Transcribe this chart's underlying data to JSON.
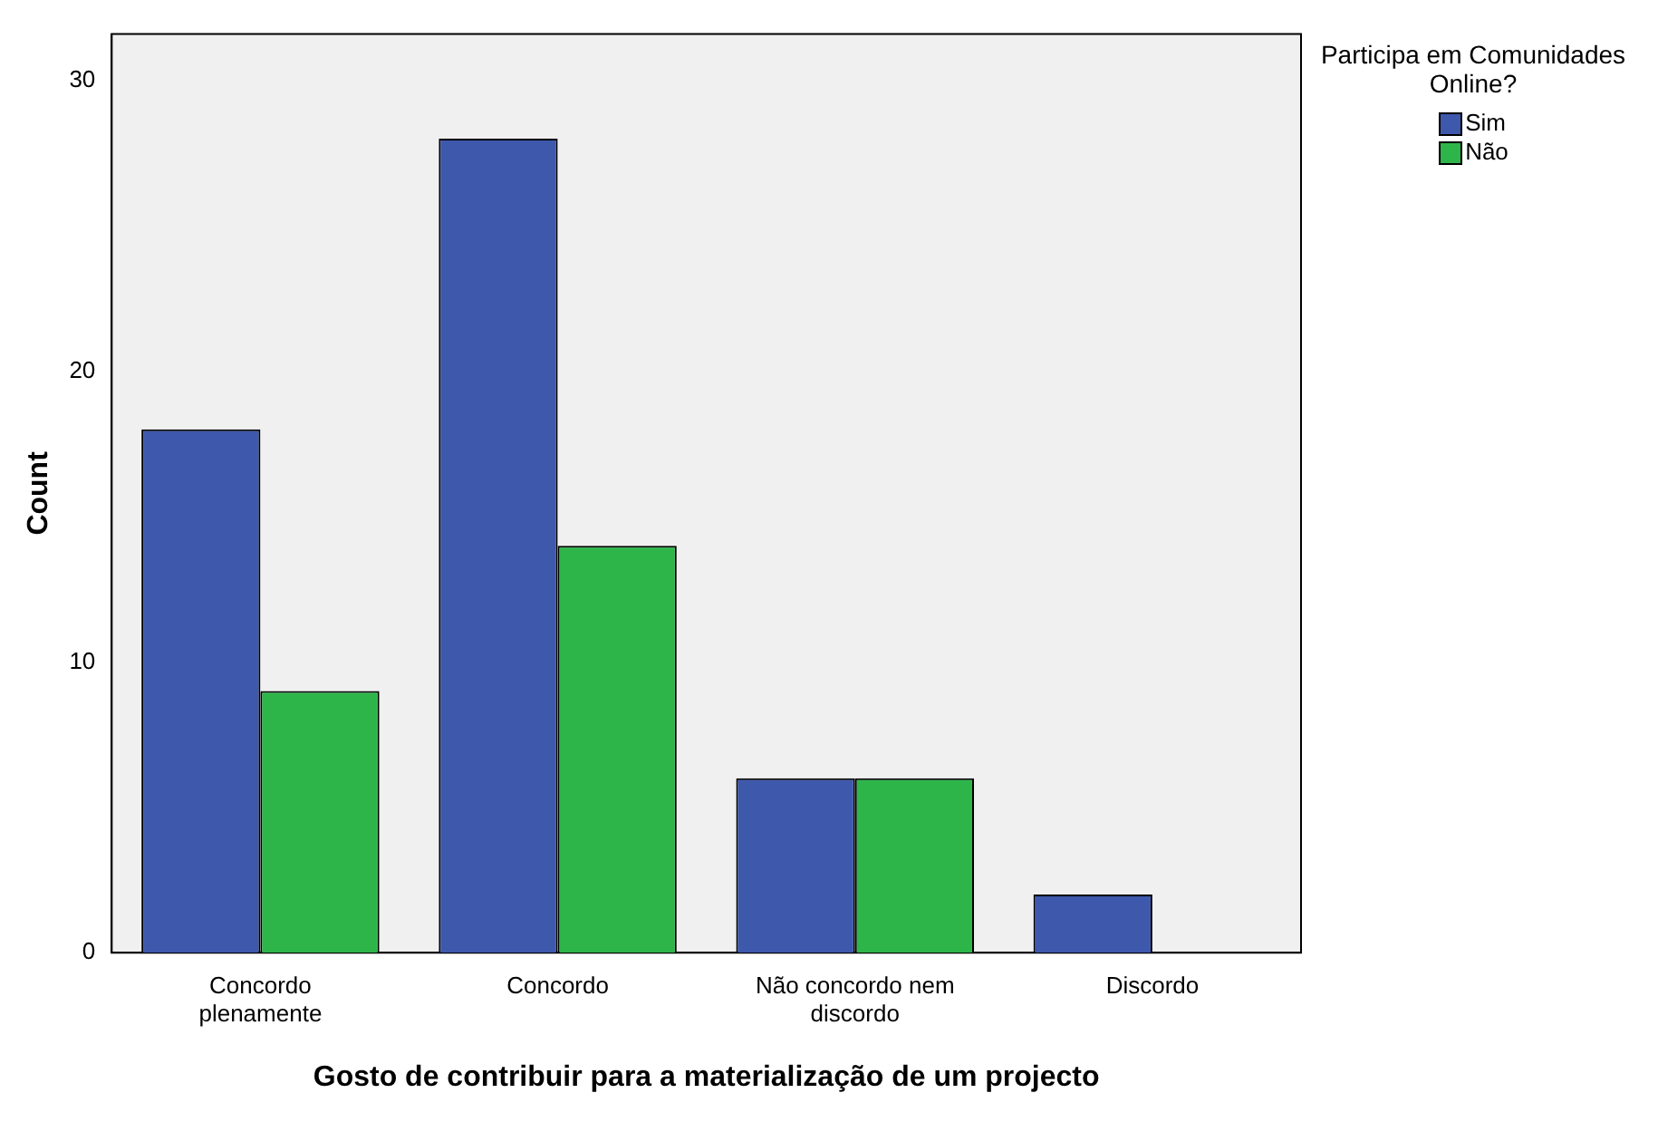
{
  "chart_data": {
    "type": "bar",
    "xlabel": "Gosto de contribuir para a materialização de um projecto",
    "ylabel": "Count",
    "legend_title": "Participa em Comunidades Online?",
    "categories": [
      "Concordo plenamente",
      "Concordo",
      "Não concordo nem discordo",
      "Discordo"
    ],
    "series": [
      {
        "name": "Sim",
        "color": "#3e58ac",
        "values": [
          18,
          28,
          6,
          2
        ]
      },
      {
        "name": "Não",
        "color": "#2db54a",
        "values": [
          9,
          14,
          6,
          null
        ]
      }
    ],
    "ylim": [
      0,
      31.6
    ],
    "yticks": [
      0,
      10,
      20,
      30
    ],
    "grid": false,
    "legend": "right"
  }
}
